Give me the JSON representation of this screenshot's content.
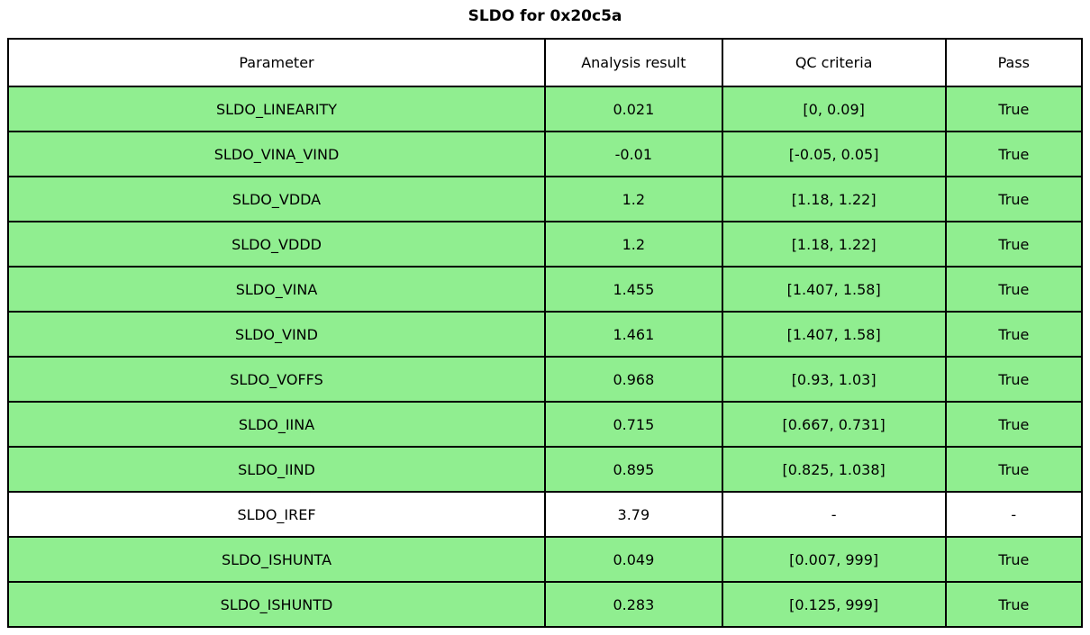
{
  "title": "SLDO for 0x20c5a",
  "colors": {
    "pass_green": "#90ee90",
    "row_white": "#ffffff",
    "border": "#000000",
    "text": "#000000"
  },
  "chart_data": {
    "type": "table",
    "title": "SLDO for 0x20c5a",
    "columns": [
      "Parameter",
      "Analysis result",
      "QC criteria",
      "Pass"
    ],
    "rows": [
      {
        "parameter": "SLDO_LINEARITY",
        "analysis_result": "0.021",
        "qc_criteria": "[0, 0.09]",
        "pass": "True",
        "highlighted": true
      },
      {
        "parameter": "SLDO_VINA_VIND",
        "analysis_result": "-0.01",
        "qc_criteria": "[-0.05, 0.05]",
        "pass": "True",
        "highlighted": true
      },
      {
        "parameter": "SLDO_VDDA",
        "analysis_result": "1.2",
        "qc_criteria": "[1.18, 1.22]",
        "pass": "True",
        "highlighted": true
      },
      {
        "parameter": "SLDO_VDDD",
        "analysis_result": "1.2",
        "qc_criteria": "[1.18, 1.22]",
        "pass": "True",
        "highlighted": true
      },
      {
        "parameter": "SLDO_VINA",
        "analysis_result": "1.455",
        "qc_criteria": "[1.407, 1.58]",
        "pass": "True",
        "highlighted": true
      },
      {
        "parameter": "SLDO_VIND",
        "analysis_result": "1.461",
        "qc_criteria": "[1.407, 1.58]",
        "pass": "True",
        "highlighted": true
      },
      {
        "parameter": "SLDO_VOFFS",
        "analysis_result": "0.968",
        "qc_criteria": "[0.93, 1.03]",
        "pass": "True",
        "highlighted": true
      },
      {
        "parameter": "SLDO_IINA",
        "analysis_result": "0.715",
        "qc_criteria": "[0.667, 0.731]",
        "pass": "True",
        "highlighted": true
      },
      {
        "parameter": "SLDO_IIND",
        "analysis_result": "0.895",
        "qc_criteria": "[0.825, 1.038]",
        "pass": "True",
        "highlighted": true
      },
      {
        "parameter": "SLDO_IREF",
        "analysis_result": "3.79",
        "qc_criteria": "-",
        "pass": "-",
        "highlighted": false
      },
      {
        "parameter": "SLDO_ISHUNTA",
        "analysis_result": "0.049",
        "qc_criteria": "[0.007, 999]",
        "pass": "True",
        "highlighted": true
      },
      {
        "parameter": "SLDO_ISHUNTD",
        "analysis_result": "0.283",
        "qc_criteria": "[0.125, 999]",
        "pass": "True",
        "highlighted": true
      }
    ]
  }
}
